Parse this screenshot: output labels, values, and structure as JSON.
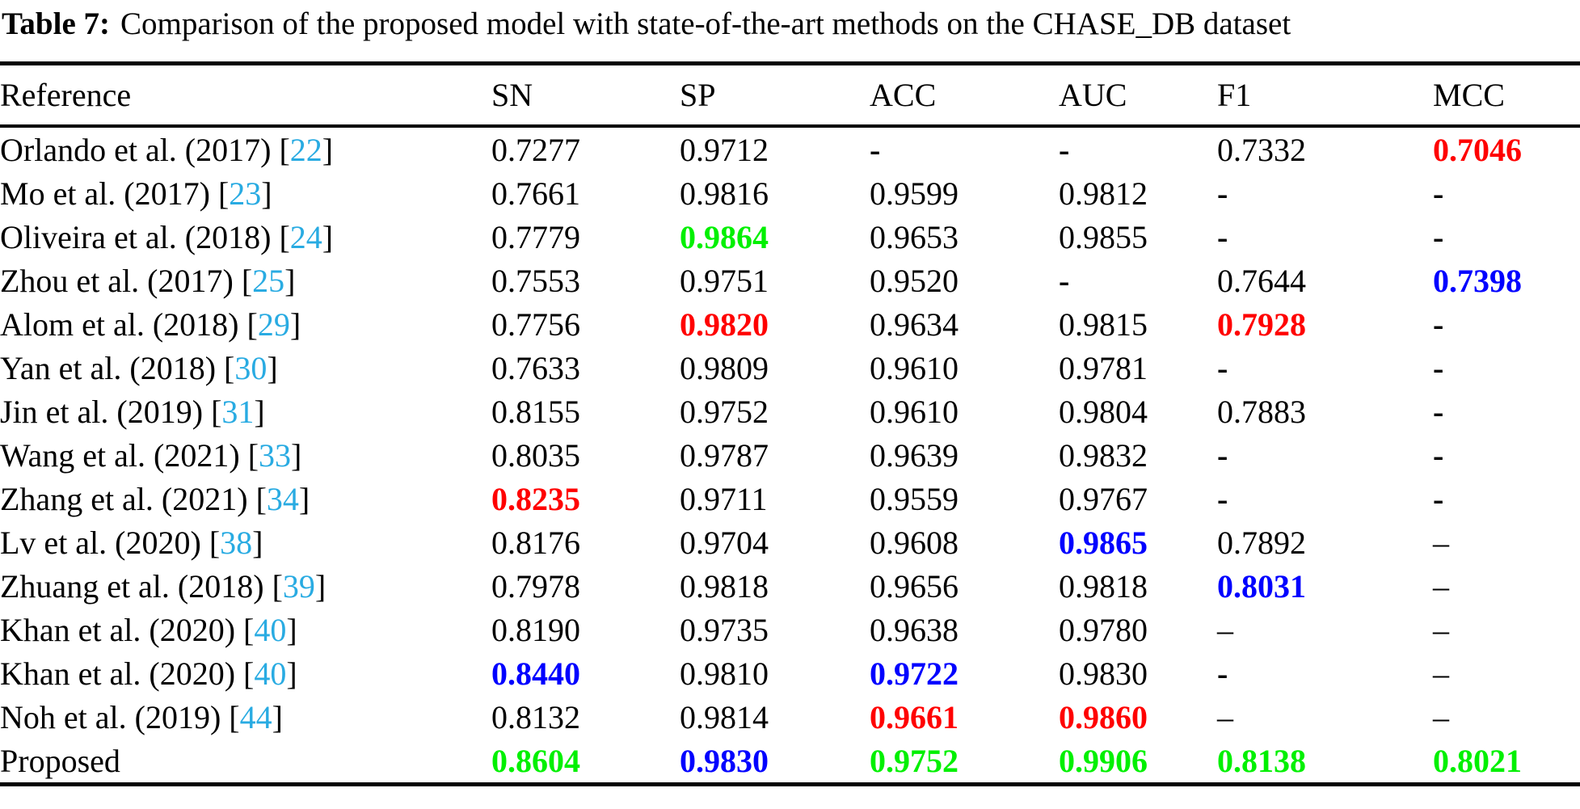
{
  "caption": {
    "label": "Table 7:",
    "text": "Comparison of the proposed model with state-of-the-art methods on the CHASE_DB dataset"
  },
  "colors": {
    "black": "#000000",
    "red": "#ff0000",
    "green": "#00f000",
    "blue": "#0000ff",
    "citation": "#29abe2"
  },
  "table": {
    "columns": [
      "Reference",
      "SN",
      "SP",
      "ACC",
      "AUC",
      "F1",
      "MCC"
    ],
    "rows": [
      {
        "name": "Orlando et al. (2017)",
        "cite": "22",
        "cells": [
          {
            "v": "0.7277",
            "c": "black",
            "b": false
          },
          {
            "v": "0.9712",
            "c": "black",
            "b": false
          },
          {
            "v": "-",
            "c": "black",
            "b": true
          },
          {
            "v": "-",
            "c": "black",
            "b": true
          },
          {
            "v": "0.7332",
            "c": "black",
            "b": false
          },
          {
            "v": "0.7046",
            "c": "red",
            "b": true
          }
        ]
      },
      {
        "name": "Mo et al. (2017)",
        "cite": "23",
        "cells": [
          {
            "v": "0.7661",
            "c": "black",
            "b": false
          },
          {
            "v": "0.9816",
            "c": "black",
            "b": false
          },
          {
            "v": "0.9599",
            "c": "black",
            "b": false
          },
          {
            "v": "0.9812",
            "c": "black",
            "b": false
          },
          {
            "v": "-",
            "c": "black",
            "b": true
          },
          {
            "v": "-",
            "c": "black",
            "b": true
          }
        ]
      },
      {
        "name": "Oliveira et al. (2018)",
        "cite": "24",
        "cells": [
          {
            "v": "0.7779",
            "c": "black",
            "b": false
          },
          {
            "v": "0.9864",
            "c": "green",
            "b": true
          },
          {
            "v": "0.9653",
            "c": "black",
            "b": false
          },
          {
            "v": "0.9855",
            "c": "black",
            "b": false
          },
          {
            "v": "-",
            "c": "black",
            "b": true
          },
          {
            "v": "-",
            "c": "black",
            "b": true
          }
        ]
      },
      {
        "name": "Zhou et al. (2017)",
        "cite": "25",
        "cells": [
          {
            "v": "0.7553",
            "c": "black",
            "b": false
          },
          {
            "v": "0.9751",
            "c": "black",
            "b": false
          },
          {
            "v": "0.9520",
            "c": "black",
            "b": false
          },
          {
            "v": "-",
            "c": "black",
            "b": true
          },
          {
            "v": "0.7644",
            "c": "black",
            "b": false
          },
          {
            "v": "0.7398",
            "c": "blue",
            "b": true
          }
        ]
      },
      {
        "name": "Alom et al. (2018)",
        "cite": "29",
        "cells": [
          {
            "v": "0.7756",
            "c": "black",
            "b": false
          },
          {
            "v": "0.9820",
            "c": "red",
            "b": true
          },
          {
            "v": "0.9634",
            "c": "black",
            "b": false
          },
          {
            "v": "0.9815",
            "c": "black",
            "b": false
          },
          {
            "v": "0.7928",
            "c": "red",
            "b": true
          },
          {
            "v": "-",
            "c": "black",
            "b": true
          }
        ]
      },
      {
        "name": "Yan et al. (2018)",
        "cite": "30",
        "cells": [
          {
            "v": "0.7633",
            "c": "black",
            "b": false
          },
          {
            "v": "0.9809",
            "c": "black",
            "b": false
          },
          {
            "v": "0.9610",
            "c": "black",
            "b": false
          },
          {
            "v": "0.9781",
            "c": "black",
            "b": false
          },
          {
            "v": "-",
            "c": "black",
            "b": true
          },
          {
            "v": "-",
            "c": "black",
            "b": true
          }
        ]
      },
      {
        "name": "Jin et al. (2019)",
        "cite": "31",
        "cells": [
          {
            "v": "0.8155",
            "c": "black",
            "b": false
          },
          {
            "v": "0.9752",
            "c": "black",
            "b": false
          },
          {
            "v": "0.9610",
            "c": "black",
            "b": false
          },
          {
            "v": "0.9804",
            "c": "black",
            "b": false
          },
          {
            "v": "0.7883",
            "c": "black",
            "b": false
          },
          {
            "v": "-",
            "c": "black",
            "b": true
          }
        ]
      },
      {
        "name": "Wang et al. (2021)",
        "cite": "33",
        "cells": [
          {
            "v": "0.8035",
            "c": "black",
            "b": false
          },
          {
            "v": "0.9787",
            "c": "black",
            "b": false
          },
          {
            "v": "0.9639",
            "c": "black",
            "b": false
          },
          {
            "v": "0.9832",
            "c": "black",
            "b": false
          },
          {
            "v": "-",
            "c": "black",
            "b": true
          },
          {
            "v": "-",
            "c": "black",
            "b": true
          }
        ]
      },
      {
        "name": "Zhang et al. (2021)",
        "cite": "34",
        "cells": [
          {
            "v": "0.8235",
            "c": "red",
            "b": true
          },
          {
            "v": "0.9711",
            "c": "black",
            "b": false
          },
          {
            "v": "0.9559",
            "c": "black",
            "b": false
          },
          {
            "v": "0.9767",
            "c": "black",
            "b": false
          },
          {
            "v": "-",
            "c": "black",
            "b": true
          },
          {
            "v": "-",
            "c": "black",
            "b": true
          }
        ]
      },
      {
        "name": "Lv et al. (2020)",
        "cite": "38",
        "cells": [
          {
            "v": "0.8176",
            "c": "black",
            "b": false
          },
          {
            "v": "0.9704",
            "c": "black",
            "b": false
          },
          {
            "v": "0.9608",
            "c": "black",
            "b": false
          },
          {
            "v": "0.9865",
            "c": "blue",
            "b": true
          },
          {
            "v": "0.7892",
            "c": "black",
            "b": false
          },
          {
            "v": "–",
            "c": "black",
            "b": false
          }
        ]
      },
      {
        "name": "Zhuang et al. (2018)",
        "cite": "39",
        "cells": [
          {
            "v": "0.7978",
            "c": "black",
            "b": false
          },
          {
            "v": "0.9818",
            "c": "black",
            "b": false
          },
          {
            "v": "0.9656",
            "c": "black",
            "b": false
          },
          {
            "v": "0.9818",
            "c": "black",
            "b": false
          },
          {
            "v": "0.8031",
            "c": "blue",
            "b": true
          },
          {
            "v": "–",
            "c": "black",
            "b": false
          }
        ]
      },
      {
        "name": "Khan et al. (2020)",
        "cite": "40",
        "cells": [
          {
            "v": "0.8190",
            "c": "black",
            "b": false
          },
          {
            "v": "0.9735",
            "c": "black",
            "b": false
          },
          {
            "v": "0.9638",
            "c": "black",
            "b": false
          },
          {
            "v": "0.9780",
            "c": "black",
            "b": false
          },
          {
            "v": "–",
            "c": "black",
            "b": false
          },
          {
            "v": "–",
            "c": "black",
            "b": false
          }
        ]
      },
      {
        "name": "Khan et al. (2020)",
        "cite": "40",
        "cells": [
          {
            "v": "0.8440",
            "c": "blue",
            "b": true
          },
          {
            "v": "0.9810",
            "c": "black",
            "b": false
          },
          {
            "v": "0.9722",
            "c": "blue",
            "b": true
          },
          {
            "v": "0.9830",
            "c": "black",
            "b": false
          },
          {
            "v": "-",
            "c": "black",
            "b": true
          },
          {
            "v": "–",
            "c": "black",
            "b": false
          }
        ]
      },
      {
        "name": "Noh et al. (2019)",
        "cite": "44",
        "cells": [
          {
            "v": "0.8132",
            "c": "black",
            "b": false
          },
          {
            "v": "0.9814",
            "c": "black",
            "b": false
          },
          {
            "v": "0.9661",
            "c": "red",
            "b": true
          },
          {
            "v": "0.9860",
            "c": "red",
            "b": true
          },
          {
            "v": "–",
            "c": "black",
            "b": false
          },
          {
            "v": "–",
            "c": "black",
            "b": false
          }
        ]
      },
      {
        "name": "Proposed",
        "cite": null,
        "cells": [
          {
            "v": "0.8604",
            "c": "green",
            "b": true
          },
          {
            "v": "0.9830",
            "c": "blue",
            "b": true
          },
          {
            "v": "0.9752",
            "c": "green",
            "b": true
          },
          {
            "v": "0.9906",
            "c": "green",
            "b": true
          },
          {
            "v": "0.8138",
            "c": "green",
            "b": true
          },
          {
            "v": "0.8021",
            "c": "green",
            "b": true
          }
        ]
      }
    ]
  }
}
